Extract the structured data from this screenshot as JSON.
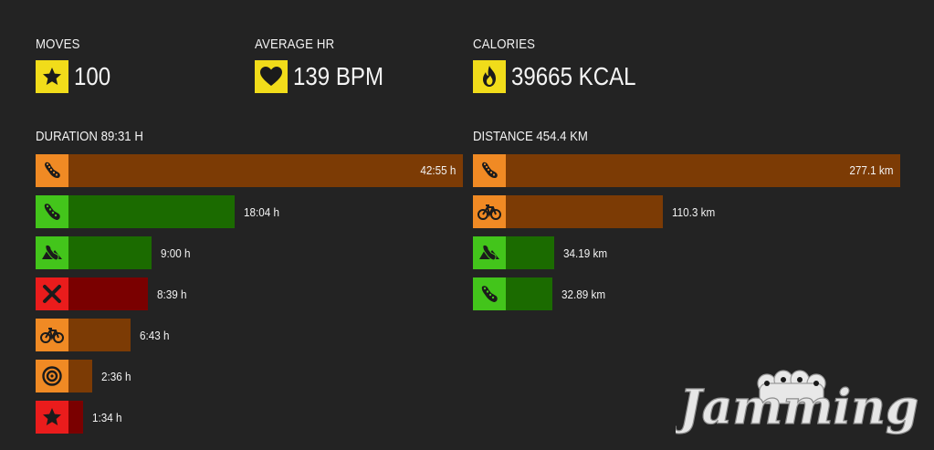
{
  "stats": {
    "moves": {
      "label": "MOVES",
      "value": "100",
      "icon": "star-icon"
    },
    "avg_hr": {
      "label": "AVERAGE HR",
      "value": "139 BPM",
      "icon": "heart-icon"
    },
    "calories": {
      "label": "CALORIES",
      "value": "39665 KCAL",
      "icon": "flame-icon"
    }
  },
  "duration": {
    "title": "DURATION 89:31 H",
    "items": [
      {
        "label": "42:55 h",
        "fraction": 1.0,
        "color": "orange",
        "icon": "running-shoe-icon"
      },
      {
        "label": "18:04 h",
        "fraction": 0.421,
        "color": "green",
        "icon": "shoe-icon"
      },
      {
        "label": "9:00 h",
        "fraction": 0.21,
        "color": "green",
        "icon": "trail-run-icon"
      },
      {
        "label": "8:39 h",
        "fraction": 0.201,
        "color": "red",
        "icon": "crossed-tools-icon"
      },
      {
        "label": "6:43 h",
        "fraction": 0.157,
        "color": "orange",
        "icon": "bicycle-icon"
      },
      {
        "label": "2:36 h",
        "fraction": 0.061,
        "color": "orange",
        "icon": "target-icon"
      },
      {
        "label": "1:34 h",
        "fraction": 0.037,
        "color": "red",
        "icon": "star-icon"
      }
    ]
  },
  "distance": {
    "title": "DISTANCE 454.4 KM",
    "items": [
      {
        "label": "277.1 km",
        "fraction": 1.0,
        "color": "orange",
        "icon": "running-shoe-icon"
      },
      {
        "label": "110.3 km",
        "fraction": 0.398,
        "color": "orange",
        "icon": "bicycle-icon"
      },
      {
        "label": "34.19 km",
        "fraction": 0.123,
        "color": "green",
        "icon": "trail-run-icon"
      },
      {
        "label": "32.89 km",
        "fraction": 0.119,
        "color": "green",
        "icon": "shoe-icon"
      }
    ]
  },
  "watermark": {
    "text": "Jamming",
    "icon": "fist-knuckles-icon"
  }
}
